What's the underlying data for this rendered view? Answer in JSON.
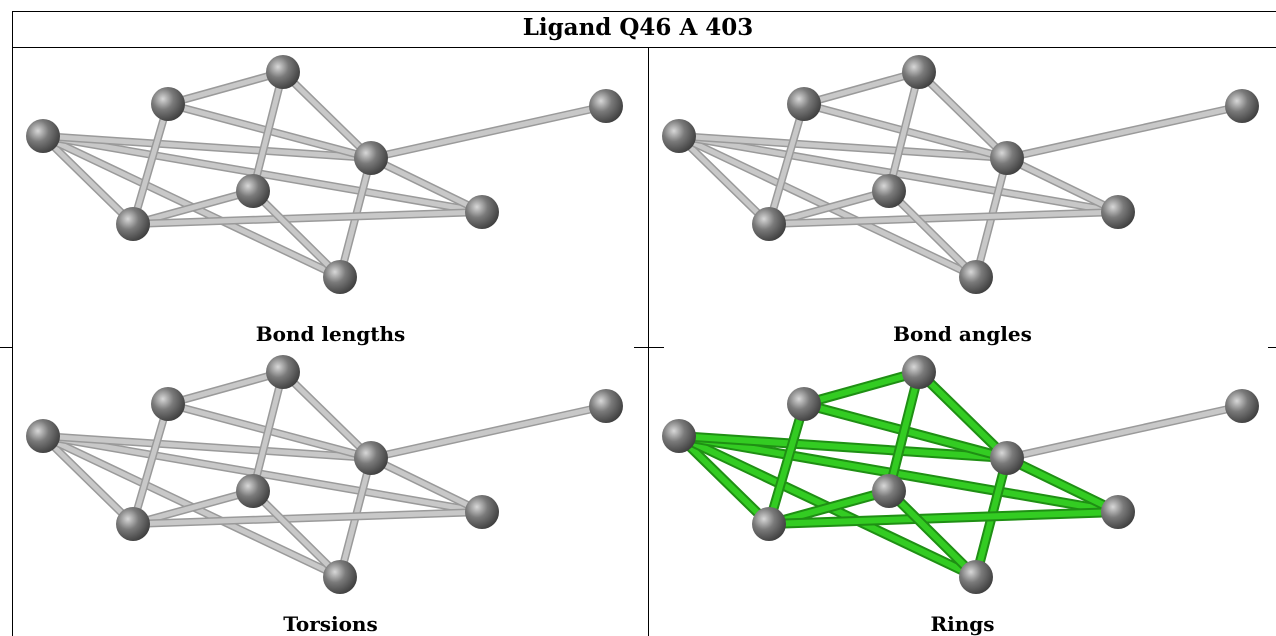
{
  "title": "Ligand Q46 A 403",
  "panels": [
    {
      "caption": "Bond lengths",
      "highlight": "none"
    },
    {
      "caption": "Bond angles",
      "highlight": "none"
    },
    {
      "caption": "Torsions",
      "highlight": "none"
    },
    {
      "caption": "Rings",
      "highlight": "rings"
    }
  ],
  "colors": {
    "atom": "#7a7a7a",
    "bond": "#c8c8c8",
    "ring_bond": "#33cc22"
  }
}
